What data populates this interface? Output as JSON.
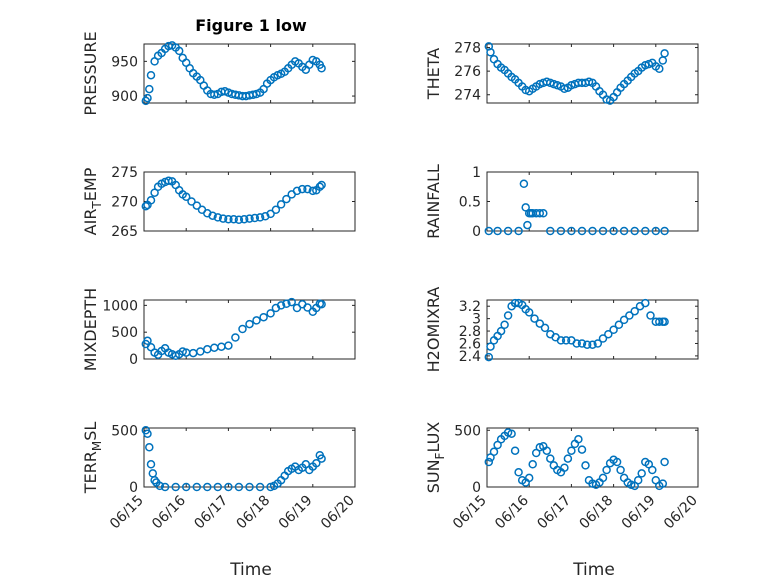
{
  "figure": {
    "title": "Figure 1 low",
    "xlabel": "Time",
    "x_ticks": [
      "06/15",
      "06/16",
      "06/17",
      "06/18",
      "06/19",
      "06/20"
    ],
    "marker_color": "#0072bd"
  },
  "chart_data": [
    {
      "type": "scatter",
      "title": "Figure 1 low",
      "ylabel": "PRESSURE",
      "ylim": [
        890,
        975
      ],
      "yticks": [
        900,
        950
      ],
      "x": [
        "06/15 01:00",
        "06/15 02:00",
        "06/15 03:00",
        "06/15 04:00",
        "06/15 06:00",
        "06/15 08:00",
        "06/15 10:00",
        "06/15 12:00",
        "06/15 14:00",
        "06/15 16:00",
        "06/15 18:00",
        "06/15 20:00",
        "06/15 22:00",
        "06/16 00:00",
        "06/16 02:00",
        "06/16 04:00",
        "06/16 06:00",
        "06/16 08:00",
        "06/16 10:00",
        "06/16 12:00",
        "06/16 14:00",
        "06/16 16:00",
        "06/16 18:00",
        "06/16 20:00",
        "06/16 22:00",
        "06/17 00:00",
        "06/17 02:00",
        "06/17 04:00",
        "06/17 06:00",
        "06/17 08:00",
        "06/17 10:00",
        "06/17 12:00",
        "06/17 14:00",
        "06/17 16:00",
        "06/17 18:00",
        "06/17 20:00",
        "06/17 22:00",
        "06/18 00:00",
        "06/18 02:00",
        "06/18 04:00",
        "06/18 06:00",
        "06/18 08:00",
        "06/18 10:00",
        "06/18 12:00",
        "06/18 14:00",
        "06/18 16:00",
        "06/18 18:00",
        "06/18 20:00",
        "06/18 22:00",
        "06/19 00:00",
        "06/19 02:00",
        "06/19 04:00",
        "06/19 05:00"
      ],
      "values": [
        893,
        897,
        910,
        930,
        950,
        958,
        962,
        968,
        972,
        973,
        970,
        965,
        955,
        948,
        940,
        933,
        928,
        923,
        915,
        908,
        903,
        902,
        903,
        906,
        907,
        905,
        903,
        902,
        901,
        900,
        900,
        901,
        902,
        903,
        905,
        910,
        918,
        923,
        927,
        930,
        932,
        935,
        940,
        945,
        950,
        947,
        942,
        938,
        945,
        952,
        950,
        945,
        940
      ]
    },
    {
      "type": "scatter",
      "title": "",
      "ylabel": "THETA",
      "ylim": [
        273.3,
        278.3
      ],
      "yticks": [
        274,
        276,
        278
      ],
      "x": [
        "06/15 01:00",
        "06/15 02:00",
        "06/15 04:00",
        "06/15 06:00",
        "06/15 08:00",
        "06/15 10:00",
        "06/15 12:00",
        "06/15 14:00",
        "06/15 16:00",
        "06/15 18:00",
        "06/15 20:00",
        "06/15 22:00",
        "06/16 00:00",
        "06/16 02:00",
        "06/16 04:00",
        "06/16 06:00",
        "06/16 08:00",
        "06/16 10:00",
        "06/16 12:00",
        "06/16 14:00",
        "06/16 16:00",
        "06/16 18:00",
        "06/16 20:00",
        "06/16 22:00",
        "06/17 00:00",
        "06/17 02:00",
        "06/17 04:00",
        "06/17 06:00",
        "06/17 08:00",
        "06/17 10:00",
        "06/17 12:00",
        "06/17 14:00",
        "06/17 16:00",
        "06/17 18:00",
        "06/17 20:00",
        "06/17 22:00",
        "06/18 00:00",
        "06/18 02:00",
        "06/18 04:00",
        "06/18 06:00",
        "06/18 08:00",
        "06/18 10:00",
        "06/18 12:00",
        "06/18 14:00",
        "06/18 16:00",
        "06/18 18:00",
        "06/18 20:00",
        "06/18 22:00",
        "06/19 00:00",
        "06/19 02:00",
        "06/19 04:00",
        "06/19 05:00"
      ],
      "values": [
        278.1,
        277.6,
        277.0,
        276.6,
        276.3,
        276.1,
        275.8,
        275.5,
        275.3,
        275.0,
        274.7,
        274.4,
        274.3,
        274.5,
        274.7,
        274.9,
        275.0,
        275.1,
        275.0,
        274.9,
        274.8,
        274.7,
        274.5,
        274.6,
        274.8,
        274.9,
        275.0,
        275.0,
        275.0,
        275.1,
        275.0,
        274.7,
        274.3,
        274.0,
        273.6,
        273.5,
        273.8,
        274.2,
        274.6,
        274.9,
        275.2,
        275.5,
        275.8,
        276.0,
        276.3,
        276.5,
        276.6,
        276.7,
        276.4,
        276.2,
        276.9,
        277.5
      ]
    },
    {
      "type": "scatter",
      "title": "",
      "ylabel": "AIR_TEMP",
      "ylim": [
        265,
        275
      ],
      "yticks": [
        265,
        270,
        275
      ],
      "x": [
        "06/15 01:00",
        "06/15 02:00",
        "06/15 04:00",
        "06/15 06:00",
        "06/15 08:00",
        "06/15 10:00",
        "06/15 12:00",
        "06/15 14:00",
        "06/15 16:00",
        "06/15 18:00",
        "06/15 20:00",
        "06/15 22:00",
        "06/16 00:00",
        "06/16 03:00",
        "06/16 06:00",
        "06/16 09:00",
        "06/16 12:00",
        "06/16 15:00",
        "06/16 18:00",
        "06/16 21:00",
        "06/17 00:00",
        "06/17 03:00",
        "06/17 06:00",
        "06/17 09:00",
        "06/17 12:00",
        "06/17 15:00",
        "06/17 18:00",
        "06/17 21:00",
        "06/18 00:00",
        "06/18 03:00",
        "06/18 06:00",
        "06/18 09:00",
        "06/18 12:00",
        "06/18 15:00",
        "06/18 18:00",
        "06/18 21:00",
        "06/19 00:00",
        "06/19 02:00",
        "06/19 04:00",
        "06/19 05:00"
      ],
      "values": [
        269.2,
        269.4,
        270.2,
        271.5,
        272.5,
        273.0,
        273.3,
        273.5,
        273.4,
        272.8,
        271.9,
        271.2,
        270.8,
        270.0,
        269.3,
        268.6,
        268.0,
        267.6,
        267.3,
        267.1,
        267.0,
        267.0,
        266.9,
        267.0,
        267.1,
        267.2,
        267.3,
        267.5,
        267.9,
        268.6,
        269.5,
        270.4,
        271.2,
        271.8,
        272.1,
        272.1,
        271.8,
        271.9,
        272.5,
        272.8
      ]
    },
    {
      "type": "scatter",
      "title": "",
      "ylabel": "RAINFALL",
      "ylim": [
        0,
        1
      ],
      "yticks": [
        0,
        0.5,
        1
      ],
      "x": [
        "06/15 01:00",
        "06/15 06:00",
        "06/15 12:00",
        "06/15 18:00",
        "06/15 21:00",
        "06/15 22:00",
        "06/15 23:00",
        "06/16 00:00",
        "06/16 01:00",
        "06/16 02:00",
        "06/16 04:00",
        "06/16 06:00",
        "06/16 08:00",
        "06/16 12:00",
        "06/16 18:00",
        "06/17 00:00",
        "06/17 06:00",
        "06/17 12:00",
        "06/17 18:00",
        "06/18 00:00",
        "06/18 06:00",
        "06/18 12:00",
        "06/18 18:00",
        "06/19 00:00",
        "06/19 05:00"
      ],
      "values": [
        0,
        0,
        0,
        0,
        0.8,
        0.4,
        0.1,
        0.3,
        0.3,
        0.3,
        0.3,
        0.3,
        0.3,
        0,
        0,
        0,
        0,
        0,
        0,
        0,
        0,
        0,
        0,
        0,
        0
      ]
    },
    {
      "type": "scatter",
      "title": "",
      "ylabel": "MIXDEPTH",
      "ylim": [
        0,
        1100
      ],
      "yticks": [
        0,
        500,
        1000
      ],
      "x": [
        "06/15 01:00",
        "06/15 02:00",
        "06/15 04:00",
        "06/15 06:00",
        "06/15 08:00",
        "06/15 10:00",
        "06/15 12:00",
        "06/15 14:00",
        "06/15 16:00",
        "06/15 18:00",
        "06/15 20:00",
        "06/15 22:00",
        "06/16 00:00",
        "06/16 04:00",
        "06/16 08:00",
        "06/16 12:00",
        "06/16 16:00",
        "06/16 20:00",
        "06/17 00:00",
        "06/17 04:00",
        "06/17 08:00",
        "06/17 12:00",
        "06/17 16:00",
        "06/17 20:00",
        "06/18 00:00",
        "06/18 03:00",
        "06/18 06:00",
        "06/18 09:00",
        "06/18 12:00",
        "06/18 15:00",
        "06/18 18:00",
        "06/18 21:00",
        "06/19 00:00",
        "06/19 02:00",
        "06/19 04:00",
        "06/19 05:00"
      ],
      "values": [
        280,
        340,
        220,
        120,
        80,
        150,
        200,
        120,
        90,
        60,
        90,
        140,
        120,
        110,
        140,
        180,
        210,
        230,
        250,
        400,
        560,
        650,
        720,
        780,
        850,
        950,
        1000,
        1030,
        1060,
        950,
        1020,
        960,
        880,
        950,
        1030,
        1020
      ]
    },
    {
      "type": "scatter",
      "title": "",
      "ylabel": "H2OMIXRA",
      "ylim": [
        2.35,
        3.3
      ],
      "yticks": [
        2.4,
        2.6,
        2.8,
        3.0,
        3.2
      ],
      "ytick_labels": [
        "2.4",
        "2.6",
        "2.8",
        "3",
        "3.2"
      ],
      "x": [
        "06/15 01:00",
        "06/15 02:00",
        "06/15 04:00",
        "06/15 06:00",
        "06/15 08:00",
        "06/15 10:00",
        "06/15 12:00",
        "06/15 14:00",
        "06/15 16:00",
        "06/15 18:00",
        "06/15 20:00",
        "06/15 22:00",
        "06/16 00:00",
        "06/16 03:00",
        "06/16 06:00",
        "06/16 09:00",
        "06/16 12:00",
        "06/16 15:00",
        "06/16 18:00",
        "06/16 21:00",
        "06/17 00:00",
        "06/17 03:00",
        "06/17 06:00",
        "06/17 09:00",
        "06/17 12:00",
        "06/17 15:00",
        "06/17 18:00",
        "06/17 21:00",
        "06/18 00:00",
        "06/18 03:00",
        "06/18 06:00",
        "06/18 09:00",
        "06/18 12:00",
        "06/18 15:00",
        "06/18 18:00",
        "06/18 21:00",
        "06/19 00:00",
        "06/19 02:00",
        "06/19 04:00",
        "06/19 05:00"
      ],
      "values": [
        2.38,
        2.55,
        2.65,
        2.72,
        2.8,
        2.9,
        3.05,
        3.2,
        3.25,
        3.25,
        3.22,
        3.15,
        3.1,
        3.0,
        2.92,
        2.85,
        2.75,
        2.7,
        2.65,
        2.65,
        2.65,
        2.6,
        2.6,
        2.58,
        2.58,
        2.6,
        2.68,
        2.75,
        2.82,
        2.9,
        2.98,
        3.05,
        3.12,
        3.2,
        3.25,
        3.05,
        2.95,
        2.95,
        2.95,
        2.95
      ]
    },
    {
      "type": "scatter",
      "title": "",
      "ylabel": "TERR_MSL",
      "ylim": [
        0,
        520
      ],
      "yticks": [
        0,
        500
      ],
      "x": [
        "06/15 01:00",
        "06/15 02:00",
        "06/15 03:00",
        "06/15 04:00",
        "06/15 05:00",
        "06/15 06:00",
        "06/15 07:00",
        "06/15 09:00",
        "06/15 12:00",
        "06/15 18:00",
        "06/16 00:00",
        "06/16 06:00",
        "06/16 12:00",
        "06/16 18:00",
        "06/17 00:00",
        "06/17 06:00",
        "06/17 12:00",
        "06/17 18:00",
        "06/18 00:00",
        "06/18 02:00",
        "06/18 04:00",
        "06/18 06:00",
        "06/18 08:00",
        "06/18 10:00",
        "06/18 12:00",
        "06/18 14:00",
        "06/18 16:00",
        "06/18 18:00",
        "06/18 20:00",
        "06/18 22:00",
        "06/19 00:00",
        "06/19 02:00",
        "06/19 04:00",
        "06/19 05:00"
      ],
      "values": [
        500,
        470,
        350,
        200,
        120,
        60,
        40,
        10,
        0,
        0,
        0,
        0,
        0,
        0,
        0,
        0,
        0,
        0,
        0,
        10,
        30,
        60,
        100,
        140,
        160,
        180,
        150,
        170,
        200,
        150,
        180,
        210,
        280,
        250
      ]
    },
    {
      "type": "scatter",
      "title": "",
      "ylabel": "SUN_FLUX",
      "ylim": [
        0,
        520
      ],
      "yticks": [
        0,
        500
      ],
      "x": [
        "06/15 01:00",
        "06/15 02:00",
        "06/15 04:00",
        "06/15 06:00",
        "06/15 08:00",
        "06/15 10:00",
        "06/15 12:00",
        "06/15 14:00",
        "06/15 16:00",
        "06/15 18:00",
        "06/15 20:00",
        "06/15 22:00",
        "06/16 00:00",
        "06/16 02:00",
        "06/16 04:00",
        "06/16 06:00",
        "06/16 08:00",
        "06/16 10:00",
        "06/16 12:00",
        "06/16 14:00",
        "06/16 16:00",
        "06/16 18:00",
        "06/16 20:00",
        "06/16 22:00",
        "06/17 00:00",
        "06/17 02:00",
        "06/17 04:00",
        "06/17 06:00",
        "06/17 08:00",
        "06/17 10:00",
        "06/17 12:00",
        "06/17 14:00",
        "06/17 16:00",
        "06/17 18:00",
        "06/17 20:00",
        "06/17 22:00",
        "06/18 00:00",
        "06/18 02:00",
        "06/18 04:00",
        "06/18 06:00",
        "06/18 08:00",
        "06/18 10:00",
        "06/18 12:00",
        "06/18 14:00",
        "06/18 16:00",
        "06/18 18:00",
        "06/18 20:00",
        "06/18 22:00",
        "06/19 00:00",
        "06/19 02:00",
        "06/19 04:00",
        "06/19 05:00"
      ],
      "values": [
        220,
        260,
        310,
        370,
        420,
        450,
        480,
        470,
        320,
        130,
        60,
        40,
        80,
        200,
        300,
        350,
        360,
        320,
        250,
        190,
        150,
        130,
        170,
        250,
        320,
        380,
        420,
        330,
        190,
        60,
        30,
        20,
        40,
        80,
        150,
        210,
        240,
        220,
        150,
        80,
        40,
        20,
        10,
        60,
        120,
        220,
        200,
        150,
        60,
        10,
        30,
        220
      ]
    }
  ]
}
